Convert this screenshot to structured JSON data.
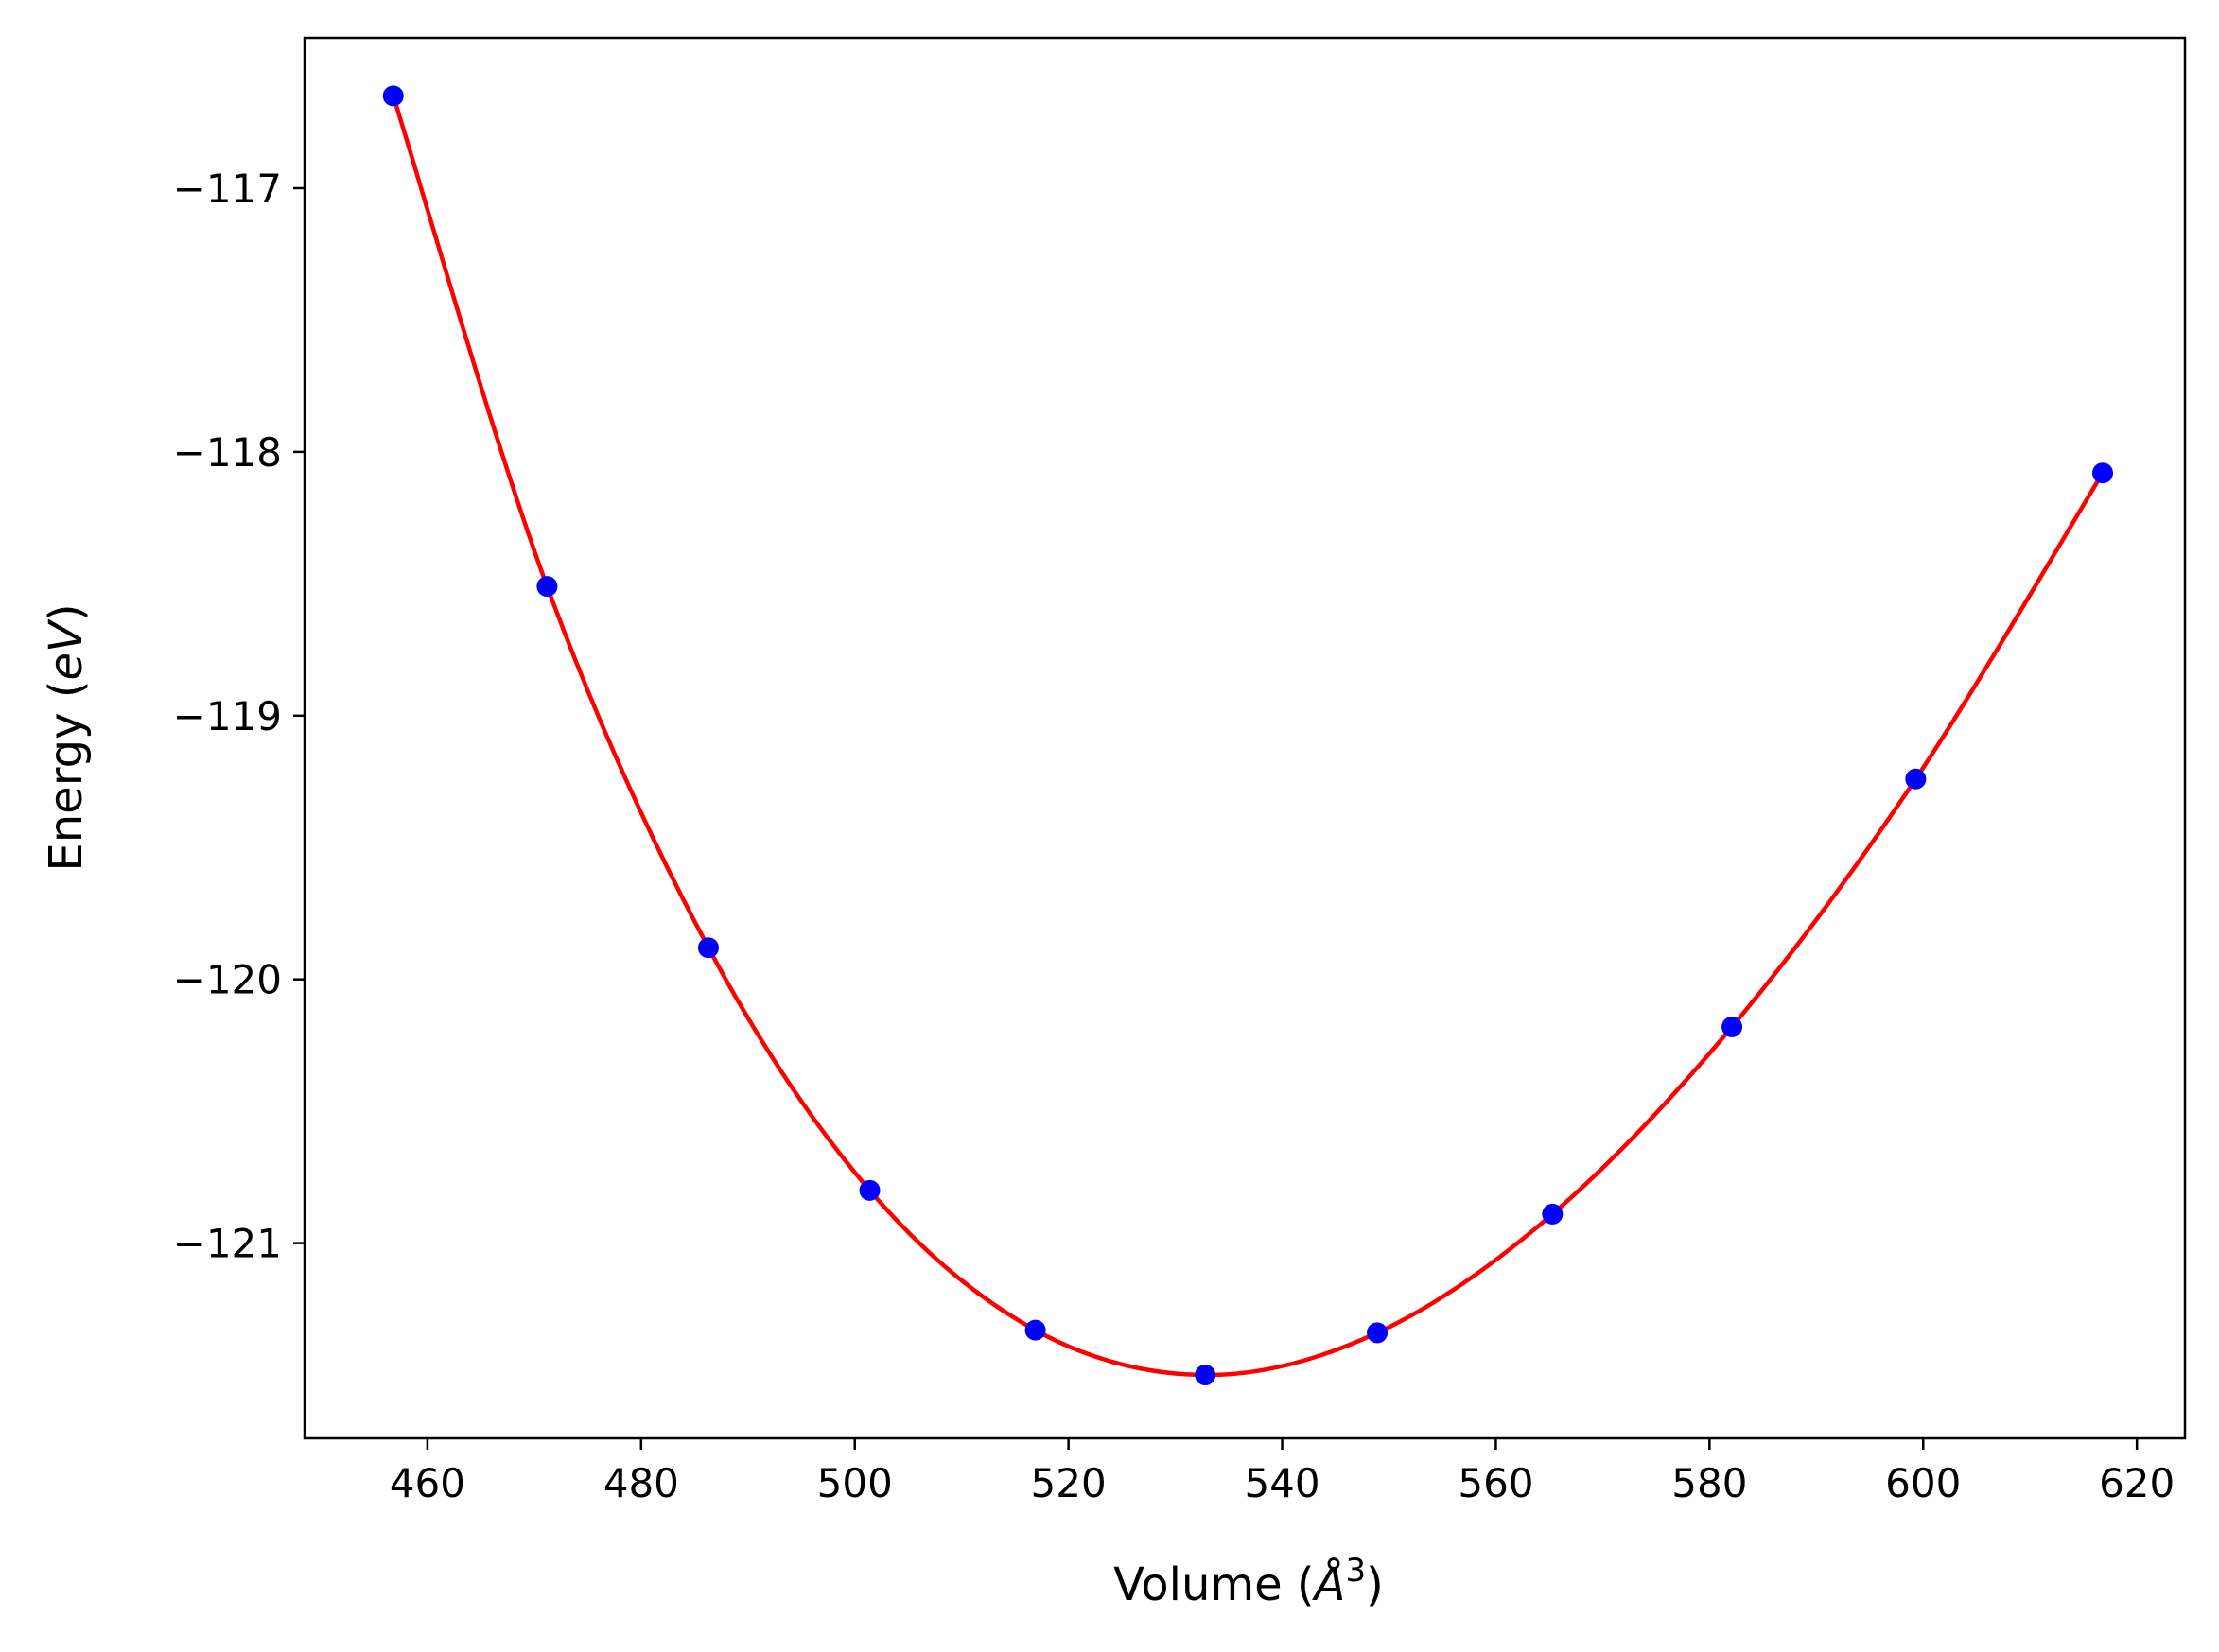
{
  "chart_data": {
    "type": "line",
    "title": "",
    "xlabel": "Volume",
    "xlabel_unit_symbol": "Å",
    "xlabel_unit_exponent": "3",
    "ylabel": "Energy",
    "ylabel_unit": "eV",
    "xlim": [
      448.5,
      624.5
    ],
    "ylim": [
      -121.74,
      -116.43
    ],
    "xticks": [
      460,
      480,
      500,
      520,
      540,
      560,
      580,
      600,
      620
    ],
    "xtick_labels": [
      "460",
      "480",
      "500",
      "520",
      "540",
      "560",
      "580",
      "600",
      "620"
    ],
    "yticks": [
      -117,
      -118,
      -119,
      -120,
      -121
    ],
    "ytick_labels": [
      "−117",
      "−118",
      "−119",
      "−120",
      "−121"
    ],
    "grid": false,
    "legend": "none",
    "series": [
      {
        "kind": "scatter",
        "color": "#0000ff",
        "x": [
          456.8,
          471.2,
          486.3,
          501.4,
          516.9,
          532.8,
          548.9,
          565.3,
          582.1,
          599.3,
          616.8
        ],
        "y": [
          -116.65,
          -118.51,
          -119.88,
          -120.8,
          -121.33,
          -121.5,
          -121.34,
          -120.89,
          -120.18,
          -119.24,
          -118.08
        ]
      },
      {
        "kind": "fit-curve",
        "color": "#ff0000",
        "x": [
          456.8,
          471.2,
          486.3,
          501.4,
          516.9,
          532.8,
          548.9,
          565.3,
          582.1,
          599.3,
          616.8
        ],
        "y": [
          -116.65,
          -118.51,
          -119.88,
          -120.8,
          -121.33,
          -121.5,
          -121.34,
          -120.89,
          -120.18,
          -119.24,
          -118.08
        ]
      }
    ]
  }
}
